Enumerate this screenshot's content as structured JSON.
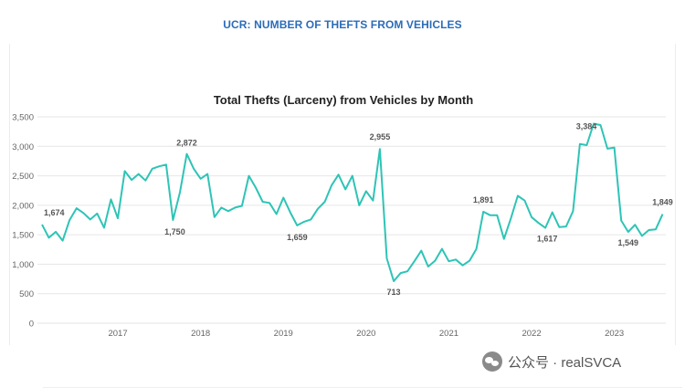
{
  "header": {
    "title": "UCR: NUMBER OF THEFTS FROM VEHICLES"
  },
  "watermark": {
    "text": "公众号 · realSVCA"
  },
  "chart_data": {
    "type": "line",
    "title": "Total Thefts (Larceny) from Vehicles by Month",
    "xlabel": "",
    "ylabel": "",
    "ylim": [
      0,
      3500
    ],
    "yticks": [
      0,
      500,
      1000,
      1500,
      2000,
      2500,
      3000,
      3500
    ],
    "ytick_labels": [
      "0",
      "500",
      "1,000",
      "1,500",
      "2,000",
      "2,500",
      "3,000",
      "3,500"
    ],
    "xticks": [
      "2017",
      "2018",
      "2019",
      "2020",
      "2021",
      "2022",
      "2023"
    ],
    "grid": true,
    "line_color": "#2ec4b6",
    "series": [
      {
        "x": [
          "2016-02",
          "2016-03",
          "2016-04",
          "2016-05",
          "2016-06",
          "2016-07",
          "2016-08",
          "2016-09",
          "2016-10",
          "2016-11",
          "2016-12",
          "2017-01",
          "2017-02",
          "2017-03",
          "2017-04",
          "2017-05",
          "2017-06",
          "2017-07",
          "2017-08",
          "2017-09",
          "2017-10",
          "2017-11",
          "2017-12",
          "2018-01",
          "2018-02",
          "2018-03",
          "2018-04",
          "2018-05",
          "2018-06",
          "2018-07",
          "2018-08",
          "2018-09",
          "2018-10",
          "2018-11",
          "2018-12",
          "2019-01",
          "2019-02",
          "2019-03",
          "2019-04",
          "2019-05",
          "2019-06",
          "2019-07",
          "2019-08",
          "2019-09",
          "2019-10",
          "2019-11",
          "2019-12",
          "2020-01",
          "2020-02",
          "2020-03",
          "2020-04",
          "2020-05",
          "2020-06",
          "2020-07",
          "2020-08",
          "2020-09",
          "2020-10",
          "2020-11",
          "2020-12",
          "2021-01",
          "2021-02",
          "2021-03",
          "2021-04",
          "2021-05",
          "2021-06",
          "2021-07",
          "2021-08",
          "2021-09",
          "2021-10",
          "2021-11",
          "2021-12",
          "2022-01",
          "2022-02",
          "2022-03",
          "2022-04",
          "2022-05",
          "2022-06",
          "2022-07",
          "2022-08",
          "2022-09",
          "2022-10",
          "2022-11",
          "2022-12",
          "2023-01",
          "2023-02",
          "2023-03",
          "2023-04",
          "2023-05",
          "2023-06",
          "2023-07",
          "2023-08"
        ],
        "values": [
          1674,
          1450,
          1550,
          1400,
          1750,
          1950,
          1870,
          1760,
          1860,
          1620,
          2100,
          1780,
          2580,
          2430,
          2530,
          2420,
          2620,
          2660,
          2690,
          1750,
          2220,
          2872,
          2620,
          2450,
          2530,
          1800,
          1960,
          1900,
          1960,
          1990,
          2500,
          2300,
          2060,
          2040,
          1850,
          2130,
          1880,
          1659,
          1720,
          1760,
          1940,
          2060,
          2340,
          2520,
          2270,
          2500,
          2000,
          2240,
          2080,
          2955,
          1100,
          713,
          850,
          880,
          1050,
          1230,
          960,
          1060,
          1260,
          1050,
          1080,
          980,
          1060,
          1260,
          1891,
          1830,
          1830,
          1430,
          1780,
          2160,
          2080,
          1800,
          1700,
          1617,
          1880,
          1630,
          1640,
          1900,
          3040,
          3020,
          3384,
          3360,
          2960,
          2980,
          1740,
          1549,
          1670,
          1480,
          1580,
          1590,
          1849
        ]
      }
    ],
    "data_labels": [
      {
        "x": "2016-02",
        "text": "1,674"
      },
      {
        "x": "2017-11",
        "text": "2,872"
      },
      {
        "x": "2017-09",
        "text": "1,750"
      },
      {
        "x": "2019-03",
        "text": "1,659"
      },
      {
        "x": "2020-03",
        "text": "2,955"
      },
      {
        "x": "2020-05",
        "text": "713"
      },
      {
        "x": "2021-06",
        "text": "1,891"
      },
      {
        "x": "2022-03",
        "text": "1,617"
      },
      {
        "x": "2022-10",
        "text": "3,384"
      },
      {
        "x": "2023-03",
        "text": "1,549"
      },
      {
        "x": "2023-08",
        "text": "1,849"
      }
    ]
  }
}
